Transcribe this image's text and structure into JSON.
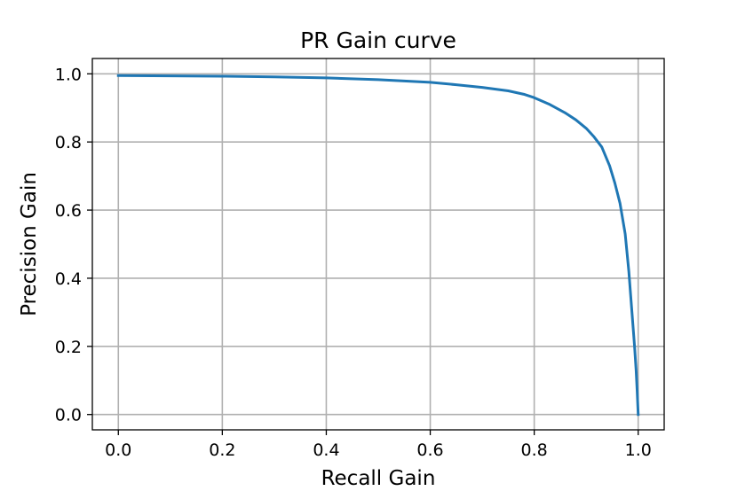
{
  "chart_data": {
    "type": "line",
    "title": "PR Gain curve",
    "xlabel": "Recall Gain",
    "ylabel": "Precision Gain",
    "xlim": [
      -0.05,
      1.05
    ],
    "ylim": [
      -0.045,
      1.045
    ],
    "xticks": [
      0.0,
      0.2,
      0.4,
      0.6,
      0.8,
      1.0
    ],
    "xtick_labels": [
      "0.0",
      "0.2",
      "0.4",
      "0.6",
      "0.8",
      "1.0"
    ],
    "yticks": [
      0.0,
      0.2,
      0.4,
      0.6,
      0.8,
      1.0
    ],
    "ytick_labels": [
      "0.0",
      "0.2",
      "0.4",
      "0.6",
      "0.8",
      "1.0"
    ],
    "grid": true,
    "series": [
      {
        "color": "#1f77b4",
        "x": [
          0.0,
          0.1,
          0.2,
          0.3,
          0.4,
          0.5,
          0.6,
          0.65,
          0.7,
          0.75,
          0.78,
          0.8,
          0.83,
          0.86,
          0.88,
          0.9,
          0.915,
          0.93,
          0.945,
          0.955,
          0.965,
          0.975,
          0.982,
          0.988,
          0.993,
          0.996,
          0.998,
          1.0
        ],
        "y": [
          0.995,
          0.994,
          0.993,
          0.991,
          0.988,
          0.983,
          0.975,
          0.968,
          0.96,
          0.95,
          0.94,
          0.93,
          0.91,
          0.885,
          0.865,
          0.84,
          0.815,
          0.785,
          0.73,
          0.68,
          0.62,
          0.53,
          0.42,
          0.3,
          0.2,
          0.13,
          0.07,
          0.0
        ]
      }
    ]
  }
}
